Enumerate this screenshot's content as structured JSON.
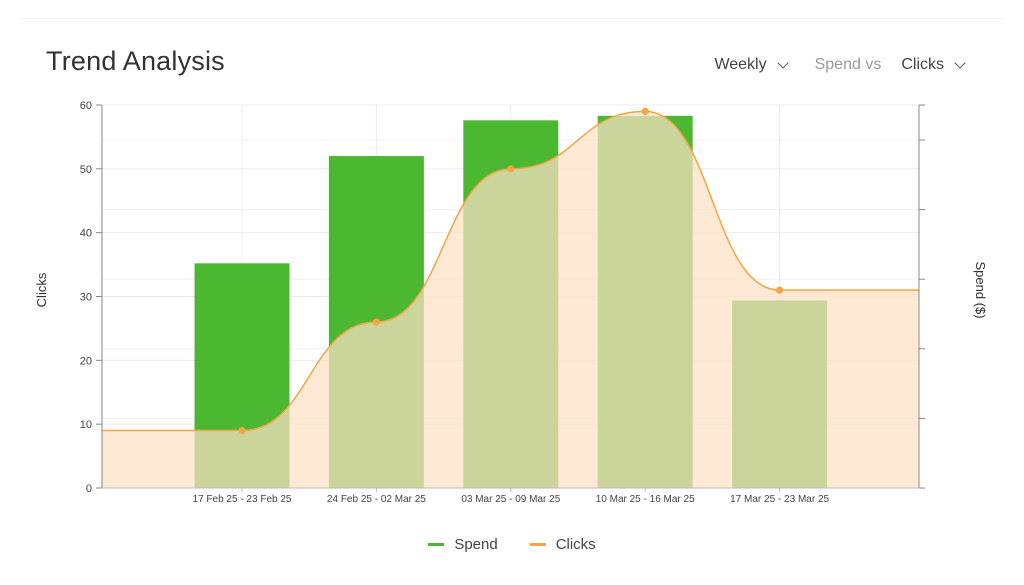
{
  "header": {
    "title": "Trend Analysis",
    "period_label": "Weekly",
    "vs_label": "Spend vs",
    "metric_label": "Clicks"
  },
  "colors": {
    "spend": "#4cb832",
    "clicks_line": "#f5a442",
    "clicks_fill": "#fce0c4"
  },
  "chart_data": {
    "type": "bar",
    "categories": [
      "17 Feb 25 - 23 Feb 25",
      "24 Feb 25 - 02 Mar 25",
      "03 Mar 25 - 09 Mar 25",
      "10 Mar 25 - 16 Mar 25",
      "17 Mar 25 - 23 Mar 25"
    ],
    "series": [
      {
        "name": "Spend",
        "type": "bar",
        "axis": "right",
        "values_on_left_scale": [
          35.2,
          52,
          57.6,
          58.3,
          29.4
        ]
      },
      {
        "name": "Clicks",
        "type": "area",
        "axis": "left",
        "values": [
          9,
          26,
          50,
          59,
          31
        ]
      }
    ],
    "ylabel": "Clicks",
    "y2label": "Spend ($)",
    "ylim": [
      0,
      60
    ],
    "yticks": [
      0,
      10,
      20,
      30,
      40,
      50,
      60
    ],
    "y2_tick_count": 6,
    "grid": true,
    "legend_position": "bottom"
  }
}
